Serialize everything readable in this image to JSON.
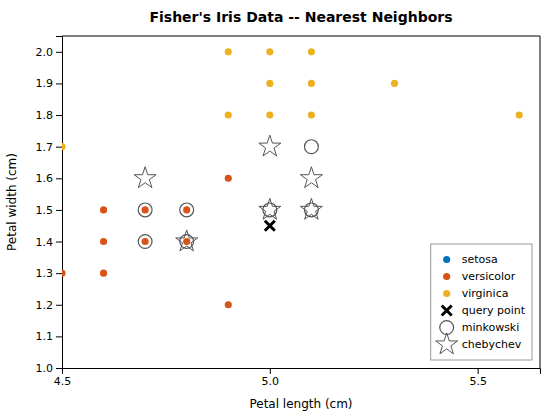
{
  "chart_data": {
    "type": "scatter",
    "title": "Fisher's Iris Data -- Nearest Neighbors",
    "xlabel": "Petal length (cm)",
    "ylabel": "Petal width (cm)",
    "xlim": [
      4.5,
      5.65
    ],
    "ylim": [
      1.0,
      2.05
    ],
    "xticks": [
      4.5,
      {
        "value": 5.0,
        "label": "5.0"
      },
      5.5
    ],
    "yticks": [
      {
        "value": 1.0,
        "label": "1.0"
      },
      1.1,
      1.2,
      1.3,
      1.4,
      1.5,
      1.6,
      1.7,
      1.8,
      1.9,
      {
        "value": 2.0,
        "label": "2.0"
      }
    ],
    "grid": false,
    "legend": "lower right",
    "series": [
      {
        "name": "setosa",
        "color": "#0072BD",
        "marker": "circle",
        "x": [],
        "values": []
      },
      {
        "name": "versicolor",
        "color": "#D95319",
        "marker": "circle",
        "x": [
          4.5,
          4.6,
          4.6,
          4.6,
          4.7,
          4.7,
          4.8,
          4.8,
          4.9,
          4.9
        ],
        "values": [
          1.3,
          1.5,
          1.4,
          1.3,
          1.4,
          1.5,
          1.5,
          1.4,
          1.2,
          1.6
        ]
      },
      {
        "name": "virginica",
        "color": "#EDB120",
        "marker": "circle",
        "x": [
          4.5,
          4.9,
          4.9,
          5.0,
          5.0,
          5.0,
          5.1,
          5.1,
          5.1,
          5.3,
          5.6
        ],
        "values": [
          1.7,
          1.8,
          2.0,
          1.8,
          1.9,
          2.0,
          1.9,
          2.0,
          1.8,
          1.9,
          1.8
        ]
      },
      {
        "name": "query point",
        "color": "#000000",
        "marker": "x",
        "x": [
          5.0
        ],
        "values": [
          1.45
        ]
      },
      {
        "name": "minkowski",
        "color": "#555555",
        "marker": "open-circle",
        "x": [
          4.7,
          4.7,
          4.8,
          4.8,
          5.0,
          5.1,
          5.1
        ],
        "values": [
          1.4,
          1.5,
          1.4,
          1.5,
          1.5,
          1.5,
          1.7
        ]
      },
      {
        "name": "chebychev",
        "color": "#555555",
        "marker": "open-star",
        "x": [
          4.7,
          4.8,
          5.0,
          5.0,
          5.1,
          5.1
        ],
        "values": [
          1.6,
          1.4,
          1.5,
          1.7,
          1.5,
          1.6
        ]
      }
    ]
  }
}
